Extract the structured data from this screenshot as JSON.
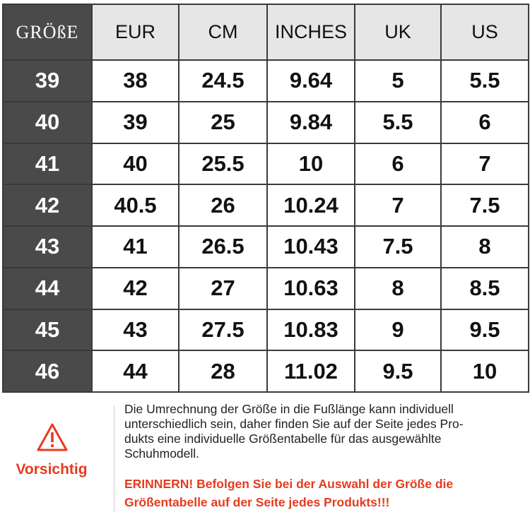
{
  "table": {
    "headers": [
      "GRÖßE",
      "EUR",
      "CM",
      "INCHES",
      "UK",
      "US"
    ],
    "rows": [
      [
        "39",
        "38",
        "24.5",
        "9.64",
        "5",
        "5.5"
      ],
      [
        "40",
        "39",
        "25",
        "9.84",
        "5.5",
        "6"
      ],
      [
        "41",
        "40",
        "25.5",
        "10",
        "6",
        "7"
      ],
      [
        "42",
        "40.5",
        "26",
        "10.24",
        "7",
        "7.5"
      ],
      [
        "43",
        "41",
        "26.5",
        "10.43",
        "7.5",
        "8"
      ],
      [
        "44",
        "42",
        "27",
        "10.63",
        "8",
        "8.5"
      ],
      [
        "45",
        "43",
        "27.5",
        "10.83",
        "9",
        "9.5"
      ],
      [
        "46",
        "44",
        "28",
        "11.02",
        "9.5",
        "10"
      ]
    ]
  },
  "notice": {
    "icon": "warning-triangle-icon",
    "label": "Vorsichtig",
    "lines": [
      "Die Umrechnung der Größe in die Fußlänge kann individuell",
      "unterschiedlich sein, daher finden Sie auf der Seite jedes Pro-",
      "dukts eine individuelle Größentabelle für das ausgewählte",
      "Schuhmodell."
    ],
    "warning_lines": [
      "ERINNERN! Befolgen Sie bei der Auswahl der Größe die",
      "Größentabelle auf der Seite jedes Produkts!!!"
    ],
    "accent_color": "#e63b1f"
  }
}
